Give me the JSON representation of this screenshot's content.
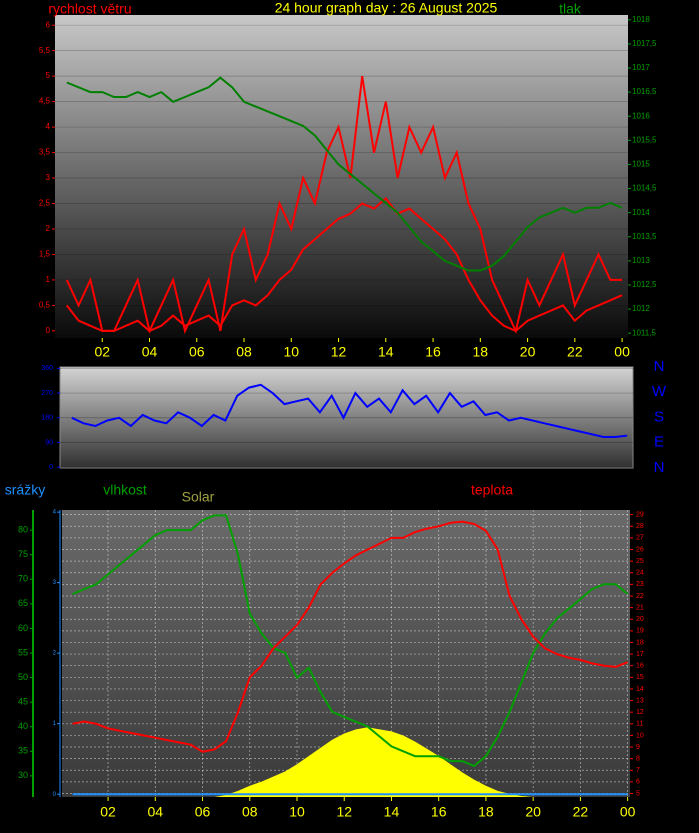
{
  "chart_data": [
    {
      "type": "line",
      "title": "24 hour graph day : 26 August 2025",
      "x": [
        0.5,
        1,
        1.5,
        2,
        2.5,
        3,
        3.5,
        4,
        4.5,
        5,
        5.5,
        6,
        6.5,
        7,
        7.5,
        8,
        8.5,
        9,
        9.5,
        10,
        10.5,
        11,
        11.5,
        12,
        12.5,
        13,
        13.5,
        14,
        14.5,
        15,
        15.5,
        16,
        16.5,
        17,
        17.5,
        18,
        18.5,
        19,
        19.5,
        20,
        20.5,
        21,
        21.5,
        22,
        22.5,
        23,
        23.5,
        24
      ],
      "series": [
        {
          "name": "rychlost větru",
          "color": "#ff0000",
          "values": [
            1,
            0.5,
            1,
            0,
            0,
            0.5,
            1,
            0,
            0.5,
            1,
            0,
            0.5,
            1,
            0,
            1.5,
            2,
            1,
            1.5,
            2.5,
            2,
            3,
            2.5,
            3.5,
            4,
            3,
            5,
            3.5,
            4.5,
            3,
            4,
            3.5,
            4,
            3,
            3.5,
            2.5,
            2,
            1,
            0.5,
            0,
            1,
            0.5,
            1,
            1.5,
            0.5,
            1,
            1.5,
            1,
            1
          ]
        },
        {
          "color": "#ff0000",
          "values": [
            0.5,
            0.2,
            0.1,
            0,
            0,
            0.1,
            0.2,
            0,
            0.1,
            0.3,
            0.1,
            0.2,
            0.3,
            0.1,
            0.5,
            0.6,
            0.5,
            0.7,
            1,
            1.2,
            1.6,
            1.8,
            2,
            2.2,
            2.3,
            2.5,
            2.4,
            2.6,
            2.3,
            2.4,
            2.2,
            2,
            1.8,
            1.5,
            1,
            0.6,
            0.3,
            0.1,
            0,
            0.2,
            0.3,
            0.4,
            0.5,
            0.2,
            0.4,
            0.5,
            0.6,
            0.7
          ]
        },
        {
          "name": "tlak",
          "color": "#008000",
          "axis": "y2",
          "values": [
            1016.7,
            1016.6,
            1016.5,
            1016.5,
            1016.4,
            1016.4,
            1016.5,
            1016.4,
            1016.5,
            1016.3,
            1016.4,
            1016.5,
            1016.6,
            1016.8,
            1016.6,
            1016.3,
            1016.2,
            1016.1,
            1016.0,
            1015.9,
            1015.8,
            1015.6,
            1015.3,
            1015.0,
            1014.8,
            1014.6,
            1014.4,
            1014.2,
            1014.0,
            1013.7,
            1013.4,
            1013.2,
            1013.0,
            1012.9,
            1012.8,
            1012.8,
            1012.9,
            1013.1,
            1013.4,
            1013.7,
            1013.9,
            1014.0,
            1014.1,
            1014.0,
            1014.1,
            1014.1,
            1014.2,
            1014.1
          ]
        }
      ],
      "xlim": [
        0,
        24.25
      ],
      "xticks": [
        {
          "value": 2,
          "label": "02"
        },
        {
          "value": 4,
          "label": "04"
        },
        {
          "value": 6,
          "label": "06"
        },
        {
          "value": 8,
          "label": "08"
        },
        10,
        12,
        14,
        16,
        18,
        20,
        22,
        {
          "value": 24,
          "label": "00"
        }
      ],
      "ylim": [
        -0.14,
        6.2
      ],
      "yticks": [
        0,
        {
          "value": 0.5,
          "label": "0,5"
        },
        1,
        {
          "value": 1.5,
          "label": "1,5"
        },
        2,
        {
          "value": 2.5,
          "label": "2,5"
        },
        3,
        {
          "value": 3.5,
          "label": "3,5"
        },
        4,
        {
          "value": 4.5,
          "label": "4,5"
        },
        5,
        {
          "value": 5.5,
          "label": "5,5"
        },
        6
      ],
      "y2lim": [
        1011.4,
        1018.1
      ],
      "y2ticks": [
        {
          "value": 1011.5,
          "label": "1011,5"
        },
        1012,
        {
          "value": 1012.5,
          "label": "1012,5"
        },
        1013,
        {
          "value": 1013.5,
          "label": "1013,5"
        },
        1014,
        {
          "value": 1014.5,
          "label": "1014,5"
        },
        1015,
        {
          "value": 1015.5,
          "label": "1015,5"
        },
        1016,
        {
          "value": 1016.5,
          "label": "1016,5"
        },
        1017,
        {
          "value": 1017.5,
          "label": "1017,5"
        },
        1018
      ],
      "grid": true
    },
    {
      "type": "line",
      "x": [
        0.5,
        1,
        1.5,
        2,
        2.5,
        3,
        3.5,
        4,
        4.5,
        5,
        5.5,
        6,
        6.5,
        7,
        7.5,
        8,
        8.5,
        9,
        9.5,
        10,
        10.5,
        11,
        11.5,
        12,
        12.5,
        13,
        13.5,
        14,
        14.5,
        15,
        15.5,
        16,
        16.5,
        17,
        17.5,
        18,
        18.5,
        19,
        19.5,
        20,
        20.5,
        21,
        21.5,
        22,
        22.5,
        23,
        23.5,
        24
      ],
      "series": [
        {
          "color": "#0000ff",
          "values": [
            180,
            160,
            150,
            170,
            180,
            150,
            190,
            170,
            160,
            200,
            180,
            150,
            190,
            170,
            260,
            290,
            300,
            270,
            230,
            240,
            250,
            200,
            260,
            180,
            270,
            220,
            250,
            200,
            280,
            230,
            260,
            200,
            270,
            220,
            240,
            190,
            200,
            170,
            180,
            170,
            160,
            150,
            140,
            130,
            120,
            110,
            110,
            115
          ]
        }
      ],
      "xlim": [
        0,
        24.25
      ],
      "ylim": [
        -3,
        365
      ],
      "yticks": [
        0,
        90,
        180,
        270,
        360
      ],
      "compass": [
        "N",
        "W",
        "S",
        "E",
        "N"
      ],
      "grid": true
    },
    {
      "type": "line",
      "x": [
        0.5,
        1,
        1.5,
        2,
        2.5,
        3,
        3.5,
        4,
        4.5,
        5,
        5.5,
        6,
        6.5,
        7,
        7.5,
        8,
        8.5,
        9,
        9.5,
        10,
        10.5,
        11,
        11.5,
        12,
        12.5,
        13,
        13.5,
        14,
        14.5,
        15,
        15.5,
        16,
        16.5,
        17,
        17.5,
        18,
        18.5,
        19,
        19.5,
        20,
        20.5,
        21,
        21.5,
        22,
        22.5,
        23,
        23.5,
        24
      ],
      "series": [
        {
          "name": "srážky",
          "color": "#1e90ff",
          "axis": "y3",
          "values": [
            0,
            0,
            0,
            0,
            0,
            0,
            0,
            0,
            0,
            0,
            0,
            0,
            0,
            0,
            0,
            0,
            0,
            0,
            0,
            0,
            0,
            0,
            0,
            0,
            0,
            0,
            0,
            0,
            0,
            0,
            0,
            0,
            0,
            0,
            0,
            0,
            0,
            0,
            0,
            0,
            0,
            0,
            0,
            0,
            0,
            0,
            0,
            0
          ]
        },
        {
          "name": "vlhkost",
          "color": "#00a000",
          "values": [
            67,
            68,
            69,
            71,
            73,
            75,
            77,
            79,
            80,
            80,
            80,
            82,
            83,
            83,
            75,
            63,
            59,
            56,
            55,
            50,
            52,
            47,
            43,
            42,
            41,
            40,
            38,
            36,
            35,
            34,
            34,
            34,
            33,
            33,
            32,
            34,
            38,
            43,
            49,
            55,
            59,
            62,
            64,
            66,
            68,
            69,
            69,
            67
          ]
        },
        {
          "name": "Solar",
          "color": "#ffff00",
          "axis": "y4",
          "fill": true,
          "values": [
            0,
            0,
            0,
            0,
            0,
            0,
            0,
            0,
            0,
            0,
            0,
            0,
            0,
            20,
            60,
            110,
            150,
            200,
            250,
            320,
            400,
            480,
            560,
            620,
            660,
            680,
            660,
            640,
            600,
            540,
            470,
            400,
            320,
            240,
            170,
            110,
            60,
            30,
            10,
            0,
            0,
            0,
            0,
            0,
            0,
            0,
            0,
            0
          ]
        },
        {
          "name": "teplota",
          "color": "#ff0000",
          "axis": "y2",
          "values": [
            11,
            11.2,
            11,
            10.6,
            10.4,
            10.2,
            10,
            9.8,
            9.6,
            9.4,
            9.2,
            8.6,
            8.8,
            9.5,
            12,
            15,
            16,
            17.5,
            18.5,
            19.5,
            21,
            23,
            24,
            24.8,
            25.5,
            26,
            26.5,
            27,
            27,
            27.5,
            27.8,
            28,
            28.3,
            28.4,
            28.2,
            27.6,
            26,
            22,
            20,
            18.5,
            17.5,
            17,
            16.7,
            16.5,
            16.2,
            16,
            15.9,
            16.3
          ]
        }
      ],
      "xlim": [
        0.05,
        24.1
      ],
      "xticks": [
        {
          "value": 2,
          "label": "02"
        },
        {
          "value": 4,
          "label": "04"
        },
        {
          "value": 6,
          "label": "06"
        },
        {
          "value": 8,
          "label": "08"
        },
        10,
        12,
        14,
        16,
        18,
        20,
        22,
        {
          "value": 24,
          "label": "00"
        }
      ],
      "ylim": [
        25.7,
        84.1
      ],
      "yticks": [
        30,
        35,
        40,
        45,
        50,
        55,
        60,
        65,
        70,
        75,
        80
      ],
      "y2lim": [
        4.7,
        29.4
      ],
      "y2ticks": [
        5,
        6,
        7,
        8,
        9,
        10,
        11,
        12,
        13,
        14,
        15,
        16,
        17,
        18,
        19,
        20,
        21,
        22,
        23,
        24,
        25,
        26,
        27,
        28,
        29
      ],
      "y3lim": [
        -0.04,
        4.03
      ],
      "y3ticks": [
        0,
        1,
        2,
        3,
        4
      ],
      "y4lim": [
        0,
        2800
      ],
      "grid": true
    }
  ]
}
